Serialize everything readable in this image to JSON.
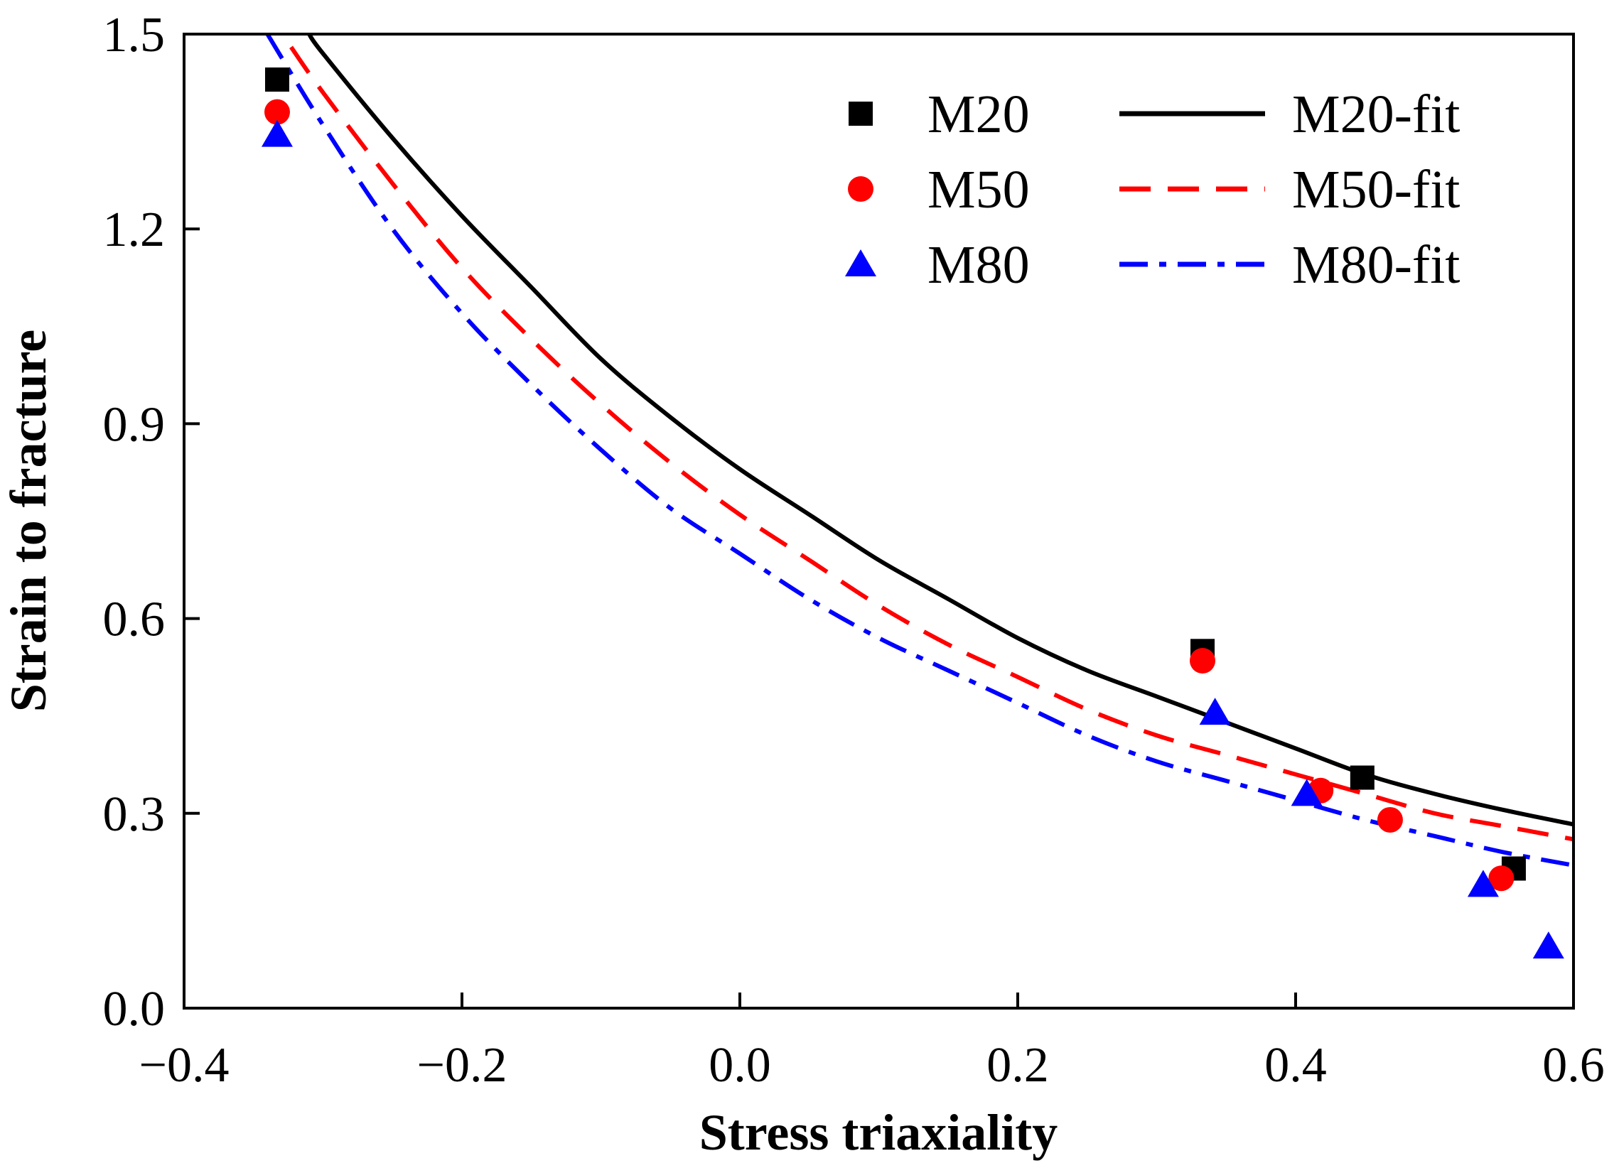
{
  "chart_data": {
    "type": "scatter",
    "title": "",
    "xlabel": "Stress triaxiality",
    "ylabel": "Strain to fracture",
    "xlim": [
      -0.4,
      0.6
    ],
    "ylim": [
      0.0,
      1.5
    ],
    "xticks": [
      -0.4,
      -0.2,
      0.0,
      0.2,
      0.4,
      0.6
    ],
    "yticks": [
      0.0,
      0.3,
      0.6,
      0.9,
      1.2,
      1.5
    ],
    "xtick_labels": [
      "−0.4",
      "−0.2",
      "0.0",
      "0.2",
      "0.4",
      "0.6"
    ],
    "ytick_labels": [
      "0.0",
      "0.3",
      "0.6",
      "0.9",
      "1.2",
      "1.5"
    ],
    "grid": false,
    "legend_position": "top-right",
    "series": [
      {
        "name": "M20",
        "kind": "points",
        "marker": "square",
        "color": "#000000",
        "x": [
          -0.333,
          0.333,
          0.448,
          0.557
        ],
        "y": [
          1.43,
          0.55,
          0.355,
          0.215
        ]
      },
      {
        "name": "M50",
        "kind": "points",
        "marker": "circle",
        "color": "#ff0000",
        "x": [
          -0.333,
          0.333,
          0.418,
          0.468,
          0.548
        ],
        "y": [
          1.38,
          0.535,
          0.335,
          0.29,
          0.2
        ]
      },
      {
        "name": "M80",
        "kind": "points",
        "marker": "triangle",
        "color": "#0000ff",
        "x": [
          -0.333,
          0.342,
          0.408,
          0.535,
          0.582
        ],
        "y": [
          1.345,
          0.455,
          0.33,
          0.19,
          0.095
        ]
      },
      {
        "name": "M20-fit",
        "kind": "curve",
        "style": "solid",
        "color": "#000000",
        "x": [
          -0.31,
          -0.3,
          -0.25,
          -0.2,
          -0.15,
          -0.1,
          -0.05,
          0.0,
          0.05,
          0.1,
          0.15,
          0.2,
          0.25,
          0.3,
          0.35,
          0.4,
          0.45,
          0.5,
          0.55,
          0.6
        ],
        "y": [
          1.5,
          1.47,
          1.34,
          1.22,
          1.11,
          1.0,
          0.91,
          0.83,
          0.76,
          0.69,
          0.63,
          0.57,
          0.52,
          0.48,
          0.44,
          0.4,
          0.36,
          0.33,
          0.305,
          0.283
        ]
      },
      {
        "name": "M50-fit",
        "kind": "curve",
        "style": "dashed",
        "color": "#ff0000",
        "x": [
          -0.323,
          -0.3,
          -0.25,
          -0.2,
          -0.15,
          -0.1,
          -0.05,
          0.0,
          0.05,
          0.1,
          0.15,
          0.2,
          0.25,
          0.3,
          0.35,
          0.4,
          0.45,
          0.5,
          0.55,
          0.6
        ],
        "y": [
          1.48,
          1.41,
          1.27,
          1.14,
          1.03,
          0.93,
          0.84,
          0.76,
          0.69,
          0.62,
          0.56,
          0.51,
          0.46,
          0.42,
          0.39,
          0.36,
          0.33,
          0.3,
          0.28,
          0.26
        ]
      },
      {
        "name": "M80-fit",
        "kind": "curve",
        "style": "dashdot",
        "color": "#0000ff",
        "x": [
          -0.34,
          -0.3,
          -0.25,
          -0.2,
          -0.15,
          -0.1,
          -0.05,
          0.0,
          0.05,
          0.1,
          0.15,
          0.2,
          0.25,
          0.3,
          0.35,
          0.4,
          0.45,
          0.5,
          0.55,
          0.6
        ],
        "y": [
          1.5,
          1.36,
          1.2,
          1.07,
          0.96,
          0.86,
          0.77,
          0.7,
          0.63,
          0.57,
          0.52,
          0.47,
          0.42,
          0.38,
          0.35,
          0.32,
          0.29,
          0.265,
          0.24,
          0.22
        ]
      }
    ]
  }
}
